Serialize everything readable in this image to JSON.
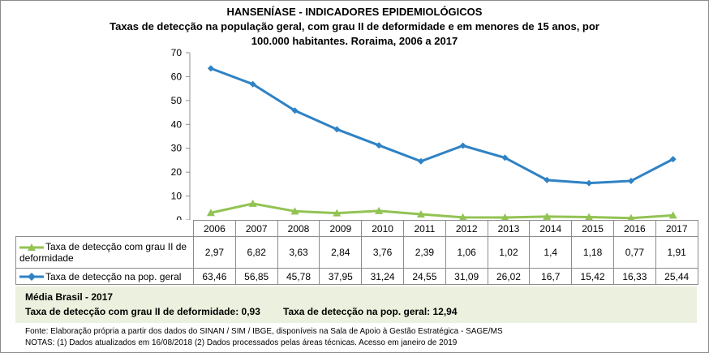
{
  "chart_data": {
    "type": "line",
    "title": "HANSENÍASE - INDICADORES EPIDEMIOLÓGICOS",
    "subtitle": [
      "Taxas de detecção na população geral, com grau II de deformidade e em menores de 15 anos, por",
      "100.000  habitantes. Roraima, 2006 a 2017"
    ],
    "categories": [
      "2006",
      "2007",
      "2008",
      "2009",
      "2010",
      "2011",
      "2012",
      "2013",
      "2014",
      "2015",
      "2016",
      "2017"
    ],
    "ylim": [
      0,
      70
    ],
    "yticks": [
      "0",
      "10",
      "20",
      "30",
      "40",
      "50",
      "60",
      "70"
    ],
    "series": [
      {
        "name": "Taxa de detecção com grau II de deformidade",
        "color": "#92c353",
        "marker": "triangle",
        "values": [
          2.97,
          6.82,
          3.63,
          2.84,
          3.76,
          2.39,
          1.06,
          1.02,
          1.4,
          1.18,
          0.77,
          1.91
        ],
        "labels": [
          "2,97",
          "6,82",
          "3,63",
          "2,84",
          "3,76",
          "2,39",
          "1,06",
          "1,02",
          "1,4",
          "1,18",
          "0,77",
          "1,91"
        ]
      },
      {
        "name": "Taxa de detecção na pop. geral",
        "color": "#2f82c4",
        "marker": "diamond",
        "values": [
          63.46,
          56.85,
          45.78,
          37.95,
          31.24,
          24.55,
          31.09,
          26.02,
          16.7,
          15.42,
          16.33,
          25.44
        ],
        "labels": [
          "63,46",
          "56,85",
          "45,78",
          "37,95",
          "31,24",
          "24,55",
          "31,09",
          "26,02",
          "16,7",
          "15,42",
          "16,33",
          "25,44"
        ]
      }
    ],
    "legend": "data-table"
  },
  "media": {
    "title": "Média Brasil  - 2017",
    "grau2": "Taxa  de detecção com grau II de deformidade: 0,93",
    "geral": "Taxa de detecção na pop. geral: 12,94"
  },
  "footer": {
    "fonte": "Fonte:  Elaboração própria a partir dos dados do  SINAN / SIM / IBGE, disponíveis na Sala de Apoio à Gestão Estratégica -  SAGE/MS",
    "notas": "NOTAS: (1) Dados atualizados em 16/08/2018 (2) Dados processados pelas áreas técnicas. Acesso em janeiro de 2019"
  }
}
